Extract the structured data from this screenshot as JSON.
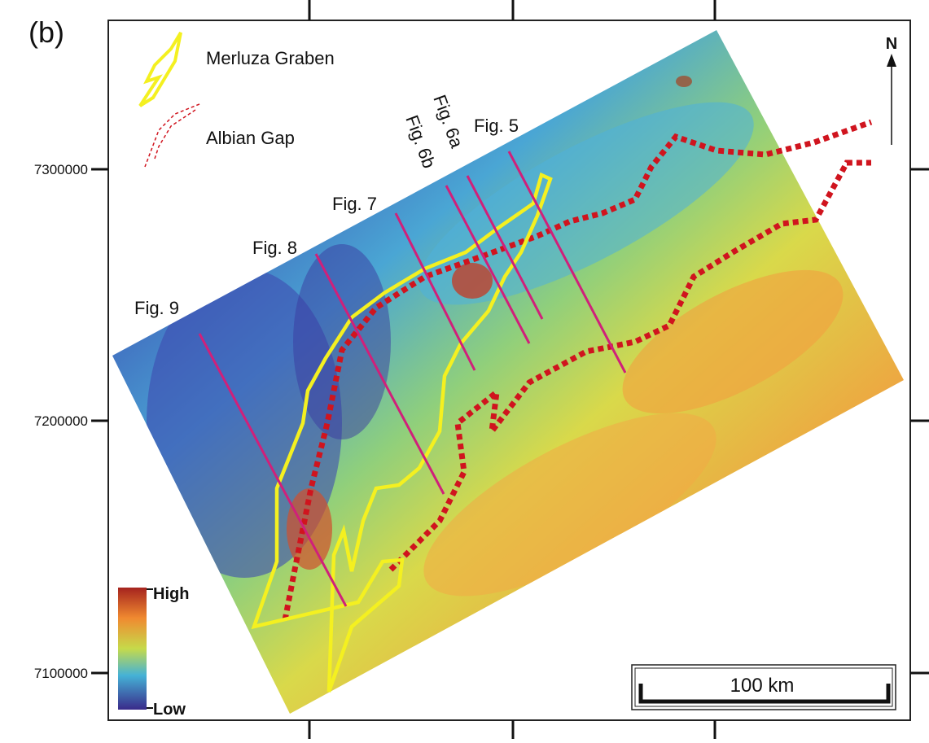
{
  "panel_label": "(b)",
  "legend": {
    "items": [
      "Merluza Graben",
      "Albian Gap"
    ]
  },
  "profiles": [
    "Fig. 9",
    "Fig. 8",
    "Fig. 7",
    "Fig. 6b",
    "Fig. 6a",
    "Fig. 5"
  ],
  "north": "N",
  "y_axis_labels": [
    "7300000",
    "7200000",
    "7100000"
  ],
  "color_scale": {
    "high": "High",
    "low": "Low"
  },
  "scale_bar": "100 km"
}
